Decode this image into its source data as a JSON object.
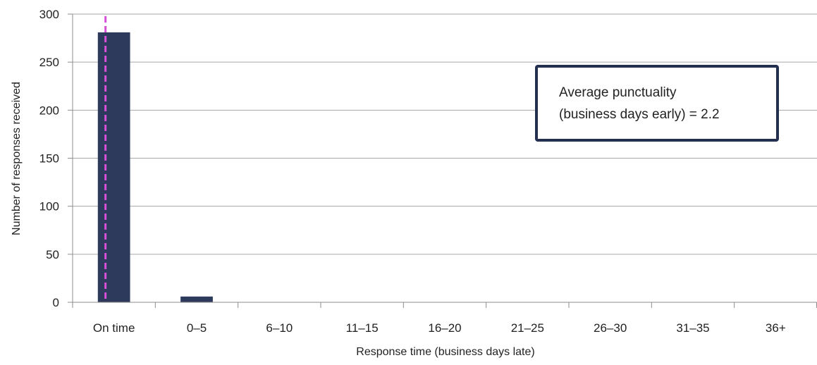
{
  "chart_data": {
    "type": "bar",
    "categories": [
      "On time",
      "0–5",
      "6–10",
      "11–15",
      "16–20",
      "21–25",
      "26–30",
      "31–35",
      "36+"
    ],
    "values": [
      281,
      6,
      0,
      0,
      0,
      0,
      0,
      0,
      0
    ],
    "ylim": [
      0,
      300
    ],
    "yticks": [
      0,
      50,
      100,
      150,
      200,
      250,
      300
    ],
    "xlabel": "Response time (business days late)",
    "ylabel": "Number  of responses received",
    "grid": true,
    "bar_color": "#2e3a5c",
    "reference_line": {
      "category": "On time",
      "color": "#d84fd8",
      "style": "dashed"
    },
    "annotation": {
      "lines": [
        "Average punctuality",
        "(business  days early) = 2.2"
      ],
      "placement": "top-right"
    }
  }
}
